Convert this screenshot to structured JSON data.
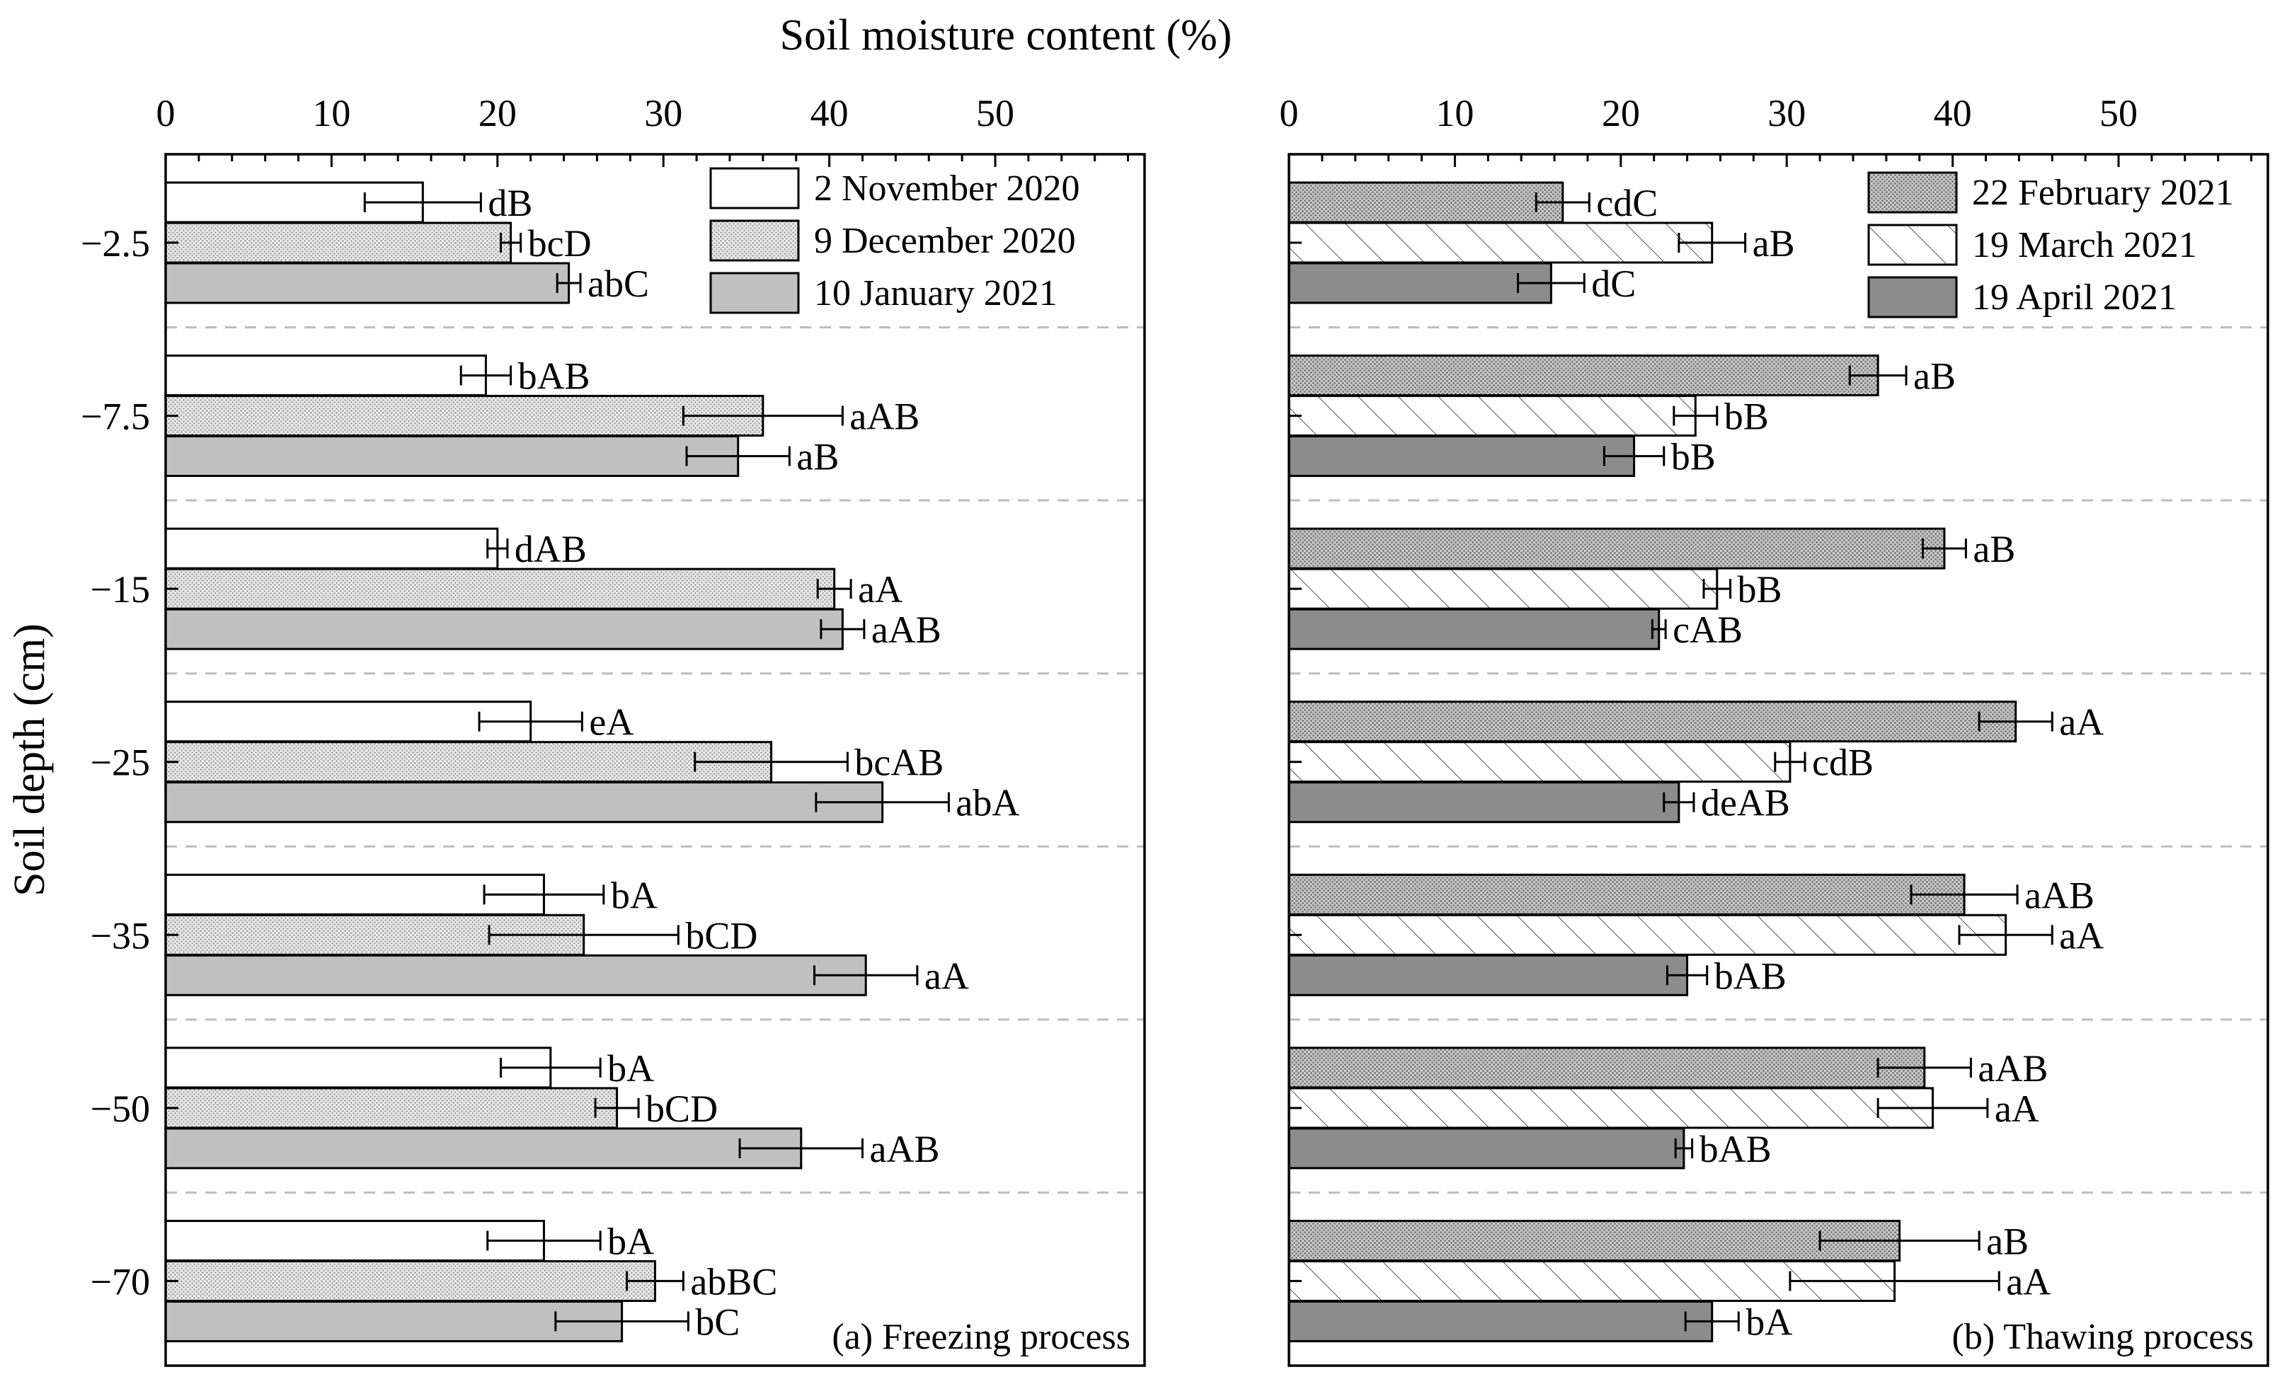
{
  "chart_data": {
    "type": "bar",
    "orientation": "horizontal",
    "title": "Soil moisture content (%)",
    "xlabel": "Soil moisture content (%)",
    "ylabel": "Soil depth (cm)",
    "xlim": [
      0,
      59
    ],
    "xticks": [
      0,
      10,
      20,
      30,
      40,
      50
    ],
    "categories": [
      "−2.5",
      "−7.5",
      "−15",
      "−25",
      "−35",
      "−50",
      "−70"
    ],
    "colors": {
      "white_fill": "#ffffff",
      "stipple_fill": "#d9d9d9",
      "light_gray_fill": "#c0c0c0",
      "dark_stipple_fill": "#a8a8a8",
      "hatch_fill": "#ffffff",
      "dark_gray_fill": "#8c8c8c",
      "grid_dash": "#bdbdbd"
    },
    "panels": [
      {
        "label": "(a) Freezing process",
        "legend_position": "top-right",
        "series": [
          {
            "name": "2    November 2020",
            "pattern": "white",
            "values": [
              15.5,
              19.3,
              20,
              22,
              22.8,
              23.2,
              22.8
            ],
            "errors": [
              3.5,
              1.5,
              0.6,
              3.1,
              3.6,
              3.0,
              3.4
            ],
            "labels": [
              "dB",
              "bAB",
              "dAB",
              "eA",
              "bA",
              "bA",
              "bA"
            ]
          },
          {
            "name": "9    December 2020",
            "pattern": "stipple",
            "values": [
              20.8,
              36,
              40.3,
              36.5,
              25.2,
              27.2,
              29.5
            ],
            "errors": [
              0.6,
              4.8,
              1.0,
              4.6,
              5.7,
              1.3,
              1.7
            ],
            "labels": [
              "bcD",
              "aAB",
              "aA",
              "bcAB",
              "bCD",
              "bCD",
              "abBC"
            ]
          },
          {
            "name": "10 January 2021",
            "pattern": "light-gray",
            "values": [
              24.3,
              34.5,
              40.8,
              43.2,
              42.2,
              38.3,
              27.5
            ],
            "errors": [
              0.7,
              3.1,
              1.3,
              4.0,
              3.1,
              3.7,
              4.0
            ],
            "labels": [
              "abC",
              "aB",
              "aAB",
              "abA",
              "aA",
              "aAB",
              "bC"
            ]
          }
        ]
      },
      {
        "label": "(b) Thawing process",
        "legend_position": "top-right",
        "series": [
          {
            "name": "22 February 2021",
            "pattern": "dark-stipple",
            "values": [
              16.5,
              35.5,
              39.5,
              43.8,
              40.7,
              38.3,
              36.8
            ],
            "errors": [
              1.6,
              1.7,
              1.3,
              2.2,
              3.2,
              2.8,
              4.8
            ],
            "labels": [
              "cdC",
              "aB",
              "aB",
              "aA",
              "aAB",
              "aAB",
              "aB"
            ]
          },
          {
            "name": "19 March 2021",
            "pattern": "hatch",
            "values": [
              25.5,
              24.5,
              25.8,
              30.2,
              43.2,
              38.8,
              36.5
            ],
            "errors": [
              2.0,
              1.3,
              0.8,
              0.9,
              2.8,
              3.3,
              6.3
            ],
            "labels": [
              "aB",
              "bB",
              "bB",
              "cdB",
              "aA",
              "aA",
              "aA"
            ]
          },
          {
            "name": "19 April 2021",
            "pattern": "dark-gray",
            "values": [
              15.8,
              20.8,
              22.3,
              23.5,
              24,
              23.8,
              25.5
            ],
            "errors": [
              2.0,
              1.8,
              0.4,
              0.9,
              1.2,
              0.5,
              1.6
            ],
            "labels": [
              "dC",
              "bB",
              "cAB",
              "deAB",
              "bAB",
              "bAB",
              "bA"
            ]
          }
        ]
      }
    ]
  }
}
